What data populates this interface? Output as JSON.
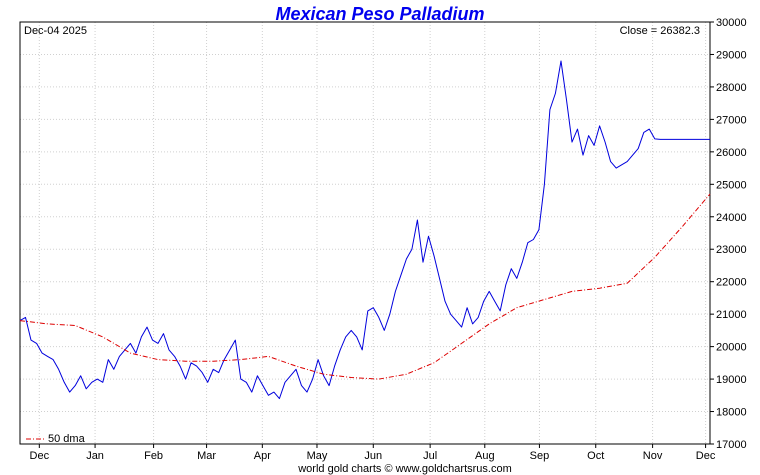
{
  "chart_data": {
    "type": "line",
    "title": "Mexican Peso Palladium",
    "date_label": "Dec-04  2025",
    "close_label": "Close = 26382.3",
    "footer": "world gold charts © www.goldchartsrus.com",
    "legend": {
      "label": "50 dma",
      "placement": "bottom-left"
    },
    "grid": true,
    "ylim": [
      17000,
      30000
    ],
    "yticks": [
      "17000",
      "18000",
      "19000",
      "20000",
      "21000",
      "22000",
      "23000",
      "24000",
      "25000",
      "26000",
      "27000",
      "28000",
      "29000",
      "30000"
    ],
    "xlim": [
      0,
      12.5
    ],
    "months": [
      {
        "label": "Dec",
        "pos": 0.35
      },
      {
        "label": "Jan",
        "pos": 1.36
      },
      {
        "label": "Feb",
        "pos": 2.42
      },
      {
        "label": "Mar",
        "pos": 3.38
      },
      {
        "label": "Apr",
        "pos": 4.39
      },
      {
        "label": "May",
        "pos": 5.38
      },
      {
        "label": "Jun",
        "pos": 6.4
      },
      {
        "label": "Jul",
        "pos": 7.43
      },
      {
        "label": "Aug",
        "pos": 8.42
      },
      {
        "label": "Sep",
        "pos": 9.41
      },
      {
        "label": "Oct",
        "pos": 10.43
      },
      {
        "label": "Nov",
        "pos": 11.46
      },
      {
        "label": "Dec",
        "pos": 12.42
      }
    ],
    "colors": {
      "title": "#0000ee",
      "price": "#0000dd",
      "dma": "#dd0000",
      "grid": "#d0d0d0"
    },
    "series": [
      {
        "name": "Mexican Peso Palladium",
        "style": "solid",
        "x": [
          0,
          0.1,
          0.2,
          0.3,
          0.4,
          0.5,
          0.6,
          0.7,
          0.8,
          0.9,
          1.0,
          1.1,
          1.2,
          1.3,
          1.4,
          1.5,
          1.6,
          1.7,
          1.8,
          1.9,
          2.0,
          2.1,
          2.2,
          2.3,
          2.4,
          2.5,
          2.6,
          2.7,
          2.8,
          2.9,
          3.0,
          3.1,
          3.2,
          3.3,
          3.4,
          3.5,
          3.6,
          3.7,
          3.8,
          3.9,
          4.0,
          4.1,
          4.2,
          4.3,
          4.4,
          4.5,
          4.6,
          4.7,
          4.8,
          4.9,
          5.0,
          5.1,
          5.2,
          5.3,
          5.4,
          5.5,
          5.6,
          5.7,
          5.8,
          5.9,
          6.0,
          6.1,
          6.2,
          6.3,
          6.4,
          6.5,
          6.6,
          6.7,
          6.8,
          6.9,
          7.0,
          7.1,
          7.2,
          7.3,
          7.4,
          7.5,
          7.6,
          7.7,
          7.8,
          7.9,
          8.0,
          8.1,
          8.2,
          8.3,
          8.4,
          8.5,
          8.6,
          8.7,
          8.8,
          8.9,
          9.0,
          9.1,
          9.2,
          9.3,
          9.4,
          9.5,
          9.6,
          9.7,
          9.8,
          9.9,
          10.0,
          10.1,
          10.2,
          10.3,
          10.4,
          10.5,
          10.6,
          10.7,
          10.8,
          10.9,
          11.0,
          11.1,
          11.2,
          11.3,
          11.4,
          11.5,
          11.6,
          11.7,
          11.8,
          11.9,
          12.0,
          12.1,
          12.2,
          12.3,
          12.4,
          12.5
        ],
        "values": [
          20800,
          20900,
          20200,
          20100,
          19800,
          19700,
          19600,
          19300,
          18900,
          18600,
          18800,
          19100,
          18700,
          18900,
          19000,
          18900,
          19600,
          19300,
          19700,
          19900,
          20100,
          19800,
          20300,
          20600,
          20200,
          20100,
          20400,
          19900,
          19700,
          19400,
          19000,
          19500,
          19400,
          19200,
          18900,
          19300,
          19200,
          19600,
          19900,
          20200,
          19000,
          18900,
          18600,
          19100,
          18800,
          18500,
          18600,
          18400,
          18900,
          19100,
          19300,
          18800,
          18600,
          19000,
          19600,
          19100,
          18800,
          19400,
          19900,
          20300,
          20500,
          20300,
          19900,
          21100,
          21200,
          20900,
          20500,
          21000,
          21700,
          22200,
          22700,
          23000,
          23900,
          22600,
          23400,
          22800,
          22100,
          21400,
          21000,
          20800,
          20600,
          21200,
          20700,
          20900,
          21400,
          21700,
          21400,
          21100,
          21900,
          22400,
          22100,
          22600,
          23200,
          23300,
          23600,
          25000,
          27300,
          27800,
          28800,
          27600,
          26300,
          26700,
          25900,
          26500,
          26200,
          26800,
          26300,
          25700,
          25500,
          25600,
          25700,
          25900,
          26100,
          26600,
          26700,
          26400,
          26382.3,
          26382.3,
          26382.3,
          26382.3,
          26382.3,
          26382.3,
          26382.3,
          26382.3,
          26382.3,
          26382.3
        ]
      },
      {
        "name": "50 dma",
        "style": "dashdot",
        "x": [
          0,
          0.5,
          1.0,
          1.5,
          2.0,
          2.5,
          3.0,
          3.5,
          4.0,
          4.5,
          5.0,
          5.5,
          6.0,
          6.5,
          7.0,
          7.5,
          8.0,
          8.5,
          9.0,
          9.5,
          10.0,
          10.5,
          11.0,
          11.5,
          12.0,
          12.5
        ],
        "values": [
          20800,
          20700,
          20650,
          20300,
          19800,
          19600,
          19550,
          19550,
          19600,
          19700,
          19400,
          19150,
          19050,
          19000,
          19150,
          19500,
          20100,
          20700,
          21200,
          21450,
          21700,
          21800,
          21950,
          22750,
          23700,
          24700
        ]
      }
    ]
  }
}
